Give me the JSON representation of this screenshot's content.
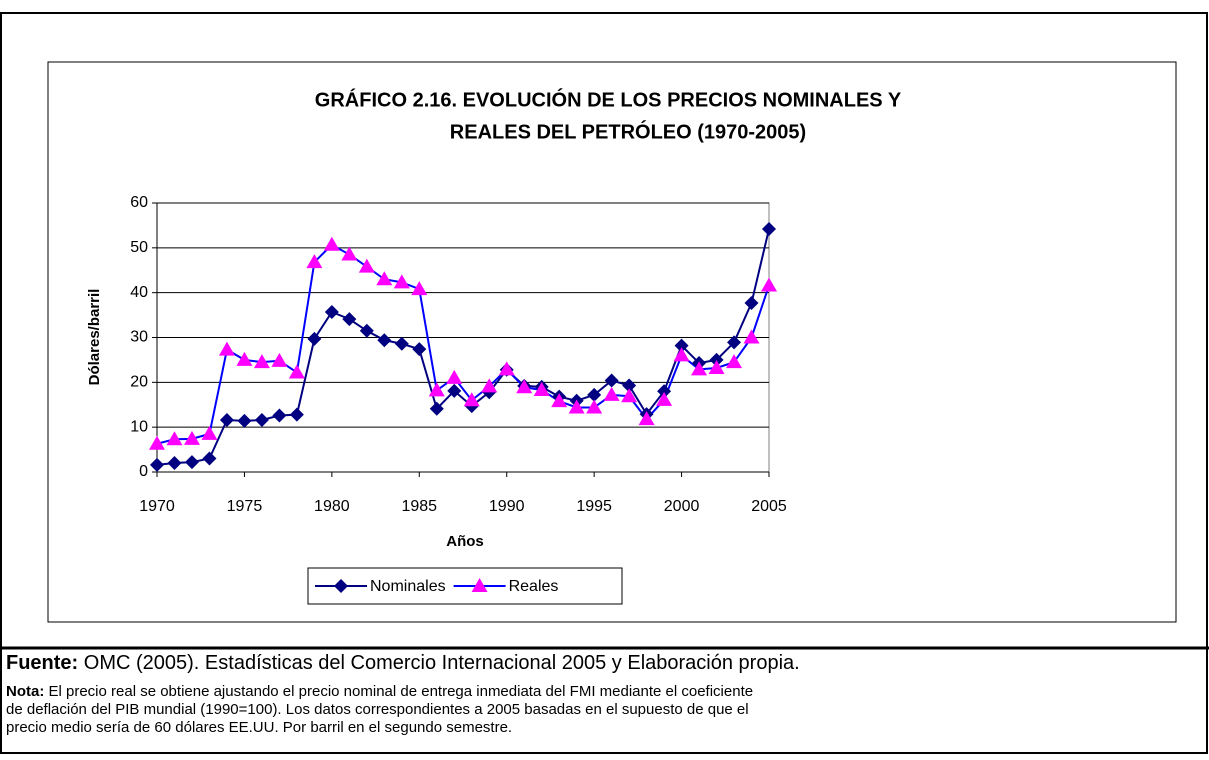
{
  "chart_data": {
    "type": "line",
    "title": [
      "GRÁFICO 2.16. EVOLUCIÓN DE LOS PRECIOS NOMINALES Y",
      "REALES DEL PETRÓLEO (1970-2005)"
    ],
    "x_label": "Años",
    "y_label": "Dólares/barril",
    "x": [
      1970,
      1971,
      1972,
      1973,
      1974,
      1975,
      1976,
      1977,
      1978,
      1979,
      1980,
      1981,
      1982,
      1983,
      1984,
      1985,
      1986,
      1987,
      1988,
      1989,
      1990,
      1991,
      1992,
      1993,
      1994,
      1995,
      1996,
      1997,
      1998,
      1999,
      2000,
      2001,
      2002,
      2003,
      2004,
      2005
    ],
    "series": [
      {
        "name": "Nominales",
        "color": "#000080",
        "marker_color": "#000080",
        "marker": "diamond",
        "values": [
          1.6,
          2.0,
          2.2,
          3.0,
          11.6,
          11.4,
          11.6,
          12.6,
          12.8,
          29.7,
          35.7,
          34.1,
          31.5,
          29.4,
          28.6,
          27.4,
          14.1,
          18.1,
          14.7,
          17.8,
          22.8,
          19.2,
          19.0,
          16.8,
          15.9,
          17.2,
          20.4,
          19.3,
          12.9,
          18.0,
          28.2,
          24.3,
          25.0,
          28.9,
          37.7,
          54.2
        ]
      },
      {
        "name": "Reales",
        "color": "#0000ff",
        "marker_color": "#ff00ff",
        "marker": "triangle",
        "values": [
          6.3,
          7.3,
          7.4,
          8.5,
          27.3,
          25.0,
          24.5,
          24.8,
          22.2,
          46.8,
          50.7,
          48.5,
          45.8,
          43.0,
          42.3,
          40.8,
          18.2,
          21.0,
          16.0,
          19.1,
          22.9,
          18.9,
          18.3,
          15.8,
          14.4,
          14.4,
          17.2,
          16.9,
          11.8,
          16.1,
          26.0,
          22.9,
          23.2,
          24.5,
          30.0,
          41.6
        ]
      }
    ],
    "xlim": [
      1970,
      2005
    ],
    "xticks": [
      1970,
      1975,
      1980,
      1985,
      1990,
      1995,
      2000,
      2005
    ],
    "ylim": [
      0,
      60
    ],
    "yticks": [
      0,
      10,
      20,
      30,
      40,
      50,
      60
    ],
    "grid": true,
    "legend": "bottom"
  },
  "source": {
    "label": "Fuente:",
    "text": "OMC (2005). Estadísticas del Comercio Internacional 2005 y Elaboración propia."
  },
  "note": {
    "label": "Nota:",
    "lines": [
      " El precio real se obtiene ajustando el precio nominal de entrega inmediata del FMI mediante el coeficiente",
      "de deflación del PIB mundial (1990=100). Los datos correspondientes a 2005 basadas en el supuesto de que el",
      "precio medio sería de 60 dólares EE.UU. Por barril en el segundo semestre."
    ]
  }
}
